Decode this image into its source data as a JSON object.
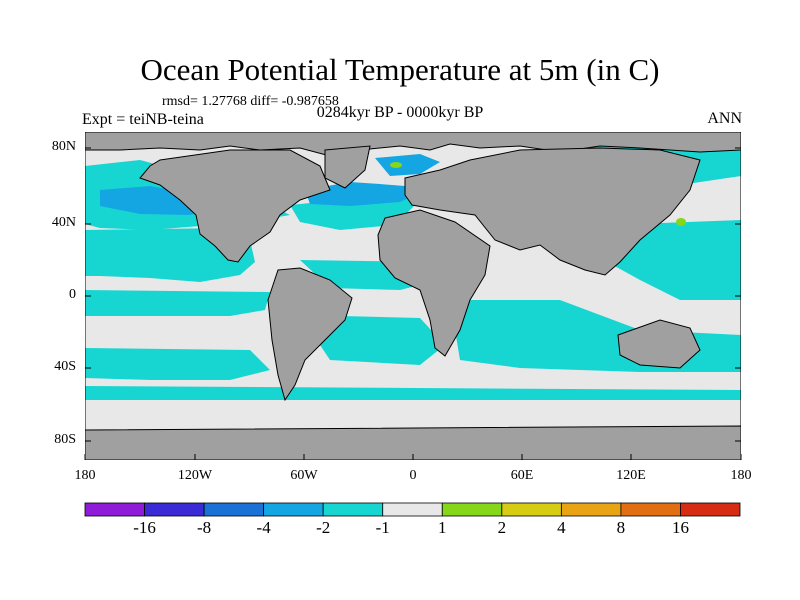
{
  "header": {
    "title": "Ocean Potential Temperature at 5m (in C)",
    "stats": "rmsd= 1.27768  diff= -0.987658",
    "experiment": "Expt = teiNB-teina",
    "period": "0284kyr BP - 0000kyr BP",
    "season": "ANN"
  },
  "axes": {
    "lat_ticks": [
      "80N",
      "40N",
      "0",
      "40S",
      "80S"
    ],
    "lon_ticks": [
      "180",
      "120W",
      "60W",
      "0",
      "60E",
      "120E",
      "180"
    ]
  },
  "colorbar": {
    "colors": [
      "#8f1cd8",
      "#3a2bd6",
      "#1a72d6",
      "#14a6e2",
      "#17d6d2",
      "#e8e8e8",
      "#86d619",
      "#d6cc14",
      "#e8a414",
      "#e26e14",
      "#d62c14"
    ],
    "labels": [
      "-16",
      "-8",
      "-4",
      "-2",
      "-1",
      "1",
      "2",
      "4",
      "8",
      "16"
    ]
  },
  "map_colors": {
    "land": "#a0a0a0",
    "ocean_neutral": "#e8e8e8",
    "ocean_cool": "#17d6d2",
    "ocean_cold": "#14a6e2",
    "ocean_warm": "#86d619"
  }
}
